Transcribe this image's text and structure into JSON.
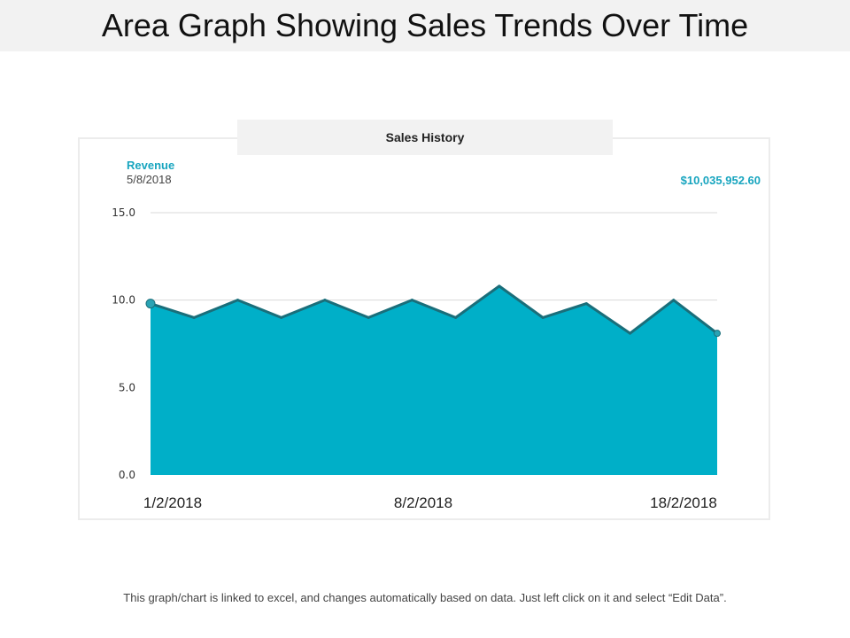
{
  "title": "Area Graph Showing Sales Trends Over Time",
  "chart_data": {
    "type": "area",
    "title": "Sales History",
    "series_name": "Revenue",
    "selected_date": "5/8/2018",
    "total_label": "$10,035,952.60",
    "x_labels": [
      "1/2/2018",
      "8/2/2018",
      "18/2/2018"
    ],
    "y_ticks": [
      "15.0",
      "10.0",
      "5.0",
      "0.0"
    ],
    "ylim": [
      0,
      15
    ],
    "values": [
      9.8,
      9.0,
      10.0,
      9.0,
      10.0,
      9.0,
      10.0,
      9.0,
      10.8,
      9.0,
      9.8,
      8.1,
      10.0,
      8.1
    ],
    "grid": true,
    "colors": {
      "fill": "#00afc8",
      "line": "#1a6e7a",
      "accent": "#18a5bf"
    }
  },
  "footer": "This graph/chart is linked to excel, and changes automatically based on data.  Just left click on it and select “Edit Data”."
}
